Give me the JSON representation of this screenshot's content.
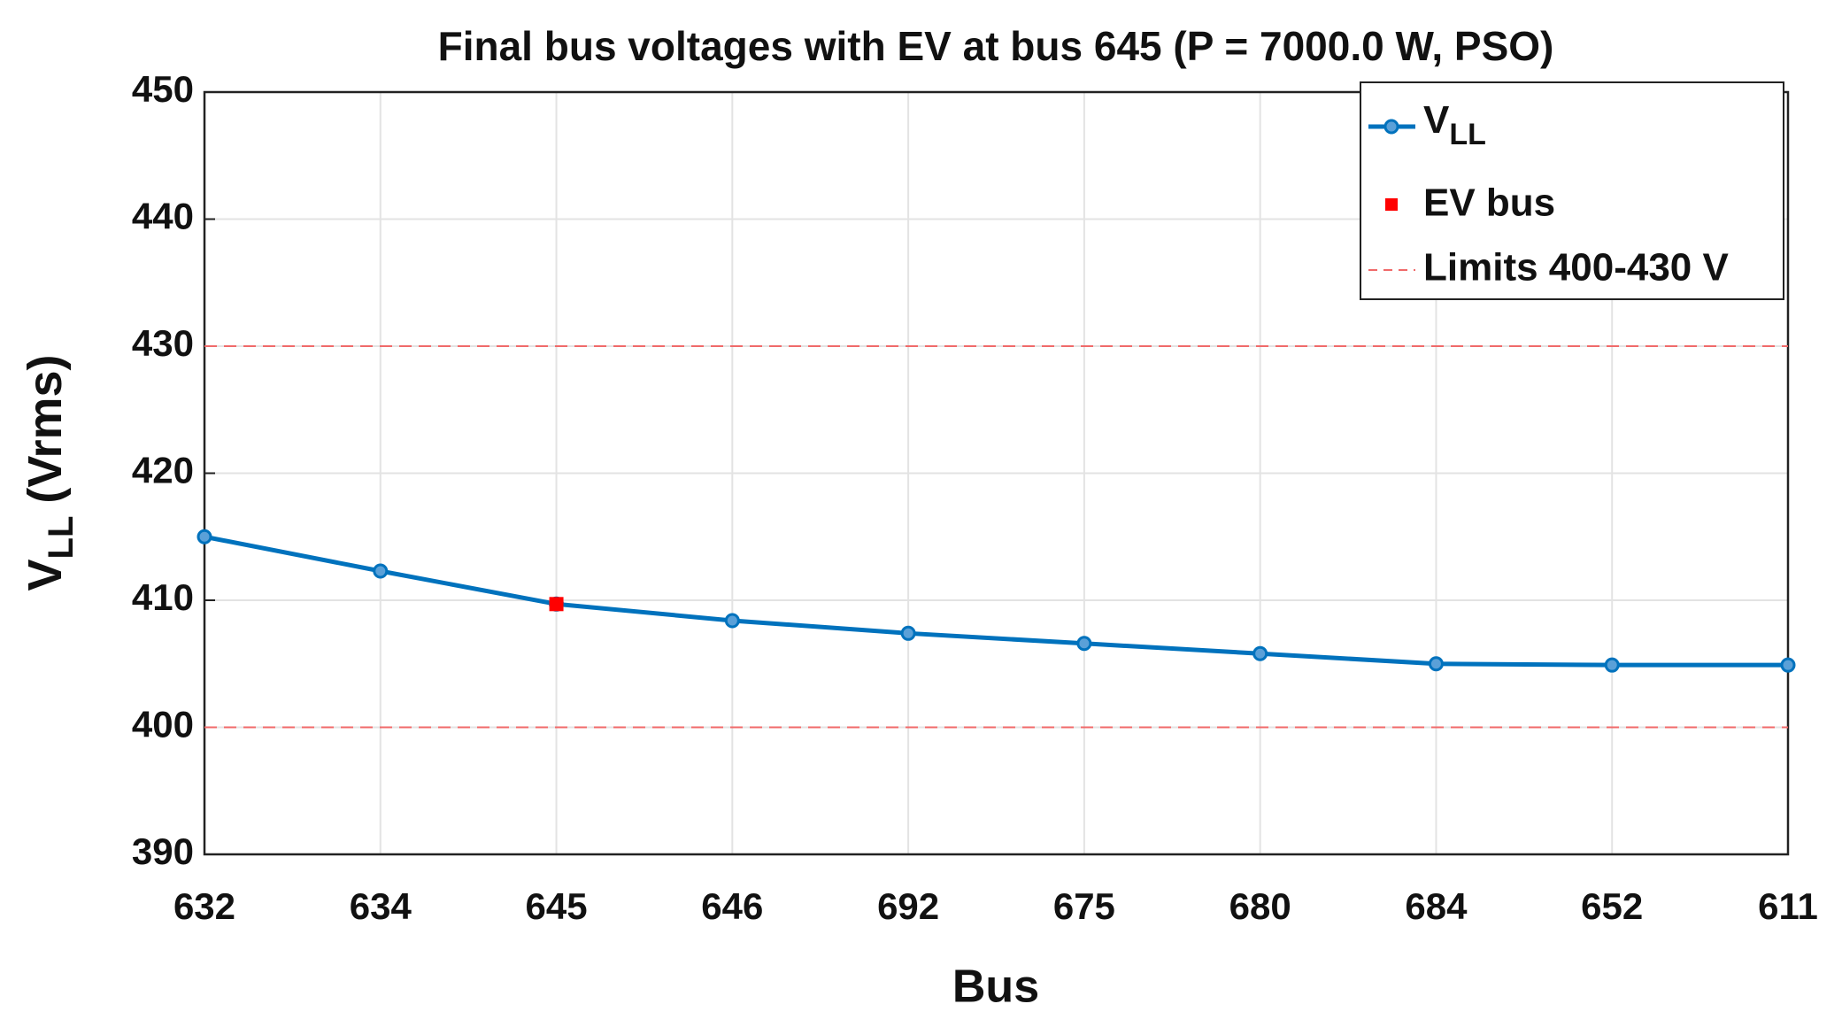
{
  "chart_data": {
    "type": "line",
    "title": "Final bus voltages with EV at bus 645 (P = 7000.0 W, PSO)",
    "xlabel": "Bus",
    "ylabel": "V",
    "ylabel_sub": "LL",
    "ylabel_unit": "(Vrms)",
    "categories": [
      "632",
      "634",
      "645",
      "646",
      "692",
      "675",
      "680",
      "684",
      "652",
      "611"
    ],
    "series": [
      {
        "name": "V",
        "name_sub": "LL",
        "color": "#0072bd",
        "values": [
          415,
          412.3,
          409.7,
          408.4,
          407.4,
          406.6,
          405.8,
          405.0,
          404.9,
          404.9
        ]
      },
      {
        "name": "EV bus",
        "color": "#ff0000",
        "values": [
          null,
          null,
          409.7,
          null,
          null,
          null,
          null,
          null,
          null,
          null
        ]
      }
    ],
    "limits": {
      "name": "Limits 400-430 V",
      "color": "#f06a6a",
      "levels": [
        400,
        430
      ]
    },
    "ylim": [
      390,
      450
    ],
    "yticks": [
      390,
      400,
      410,
      420,
      430,
      440,
      450
    ],
    "grid": true,
    "legend": "upper right"
  }
}
